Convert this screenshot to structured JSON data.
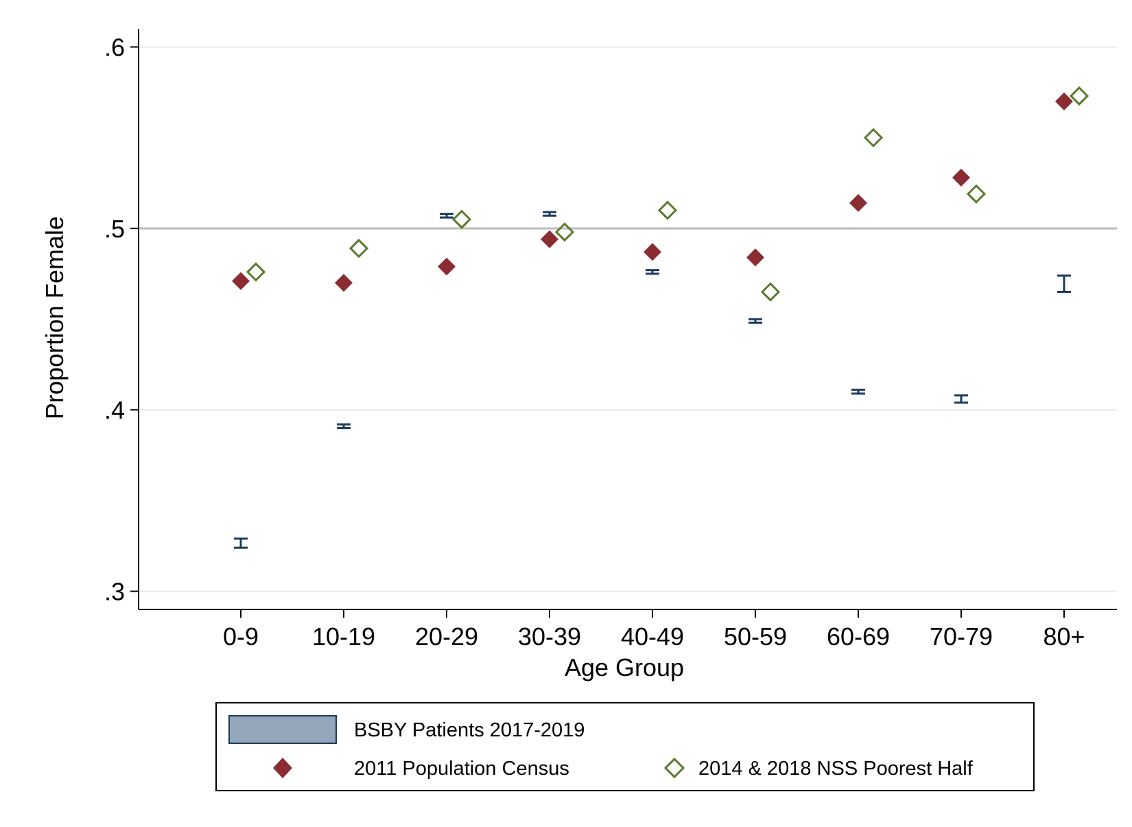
{
  "chart_data": {
    "type": "bar",
    "xlabel": "Age Group",
    "ylabel": "Proportion Female",
    "ylim": [
      0.29,
      0.61
    ],
    "yticks": [
      0.3,
      0.4,
      0.5,
      0.6
    ],
    "ytick_labels": [
      ".3",
      ".4",
      ".5",
      ".6"
    ],
    "reference_line": 0.5,
    "grid": true,
    "legend_position": "bottom",
    "categories": [
      "0-9",
      "10-19",
      "20-29",
      "30-39",
      "40-49",
      "50-59",
      "60-69",
      "70-79",
      "80+"
    ],
    "series": [
      {
        "name": "BSBY Patients 2017-2019",
        "kind": "bar",
        "values": [
          0.326,
          0.391,
          0.507,
          0.508,
          0.476,
          0.449,
          0.41,
          0.406,
          0.469
        ],
        "ci_low": [
          0.324,
          0.39,
          0.506,
          0.507,
          0.475,
          0.448,
          0.409,
          0.404,
          0.465
        ],
        "ci_high": [
          0.329,
          0.392,
          0.508,
          0.509,
          0.477,
          0.45,
          0.411,
          0.408,
          0.474
        ],
        "color": "#94a7ba",
        "edge_color": "#1a3b5c"
      },
      {
        "name": "2011 Population Census",
        "kind": "marker",
        "marker": "filled-diamond",
        "values": [
          0.471,
          0.47,
          0.479,
          0.494,
          0.487,
          0.484,
          0.514,
          0.528,
          0.57
        ],
        "color": "#8b2b32"
      },
      {
        "name": "2014 & 2018 NSS Poorest Half",
        "kind": "marker",
        "marker": "hollow-diamond",
        "values": [
          0.476,
          0.489,
          0.505,
          0.498,
          0.51,
          0.465,
          0.55,
          0.519,
          0.573
        ],
        "color": "#5a7a2c"
      }
    ]
  }
}
